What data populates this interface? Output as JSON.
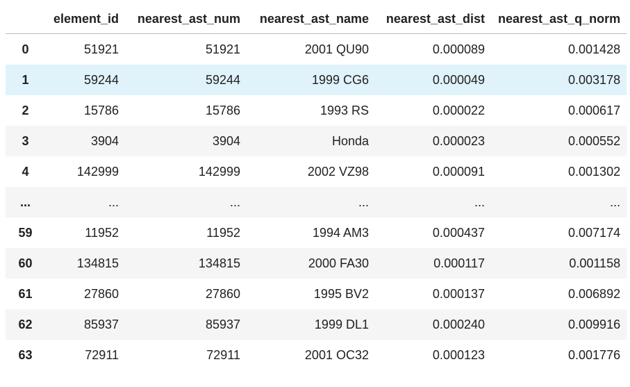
{
  "table": {
    "columns": [
      "",
      "element_id",
      "nearest_ast_num",
      "nearest_ast_name",
      "nearest_ast_dist",
      "nearest_ast_q_norm"
    ],
    "rows": [
      {
        "index": "0",
        "cells": [
          "51921",
          "51921",
          "2001 QU90",
          "0.000089",
          "0.001428"
        ]
      },
      {
        "index": "1",
        "cells": [
          "59244",
          "59244",
          "1999 CG6",
          "0.000049",
          "0.003178"
        ],
        "highlighted": true
      },
      {
        "index": "2",
        "cells": [
          "15786",
          "15786",
          "1993 RS",
          "0.000022",
          "0.000617"
        ]
      },
      {
        "index": "3",
        "cells": [
          "3904",
          "3904",
          "Honda",
          "0.000023",
          "0.000552"
        ]
      },
      {
        "index": "4",
        "cells": [
          "142999",
          "142999",
          "2002 VZ98",
          "0.000091",
          "0.001302"
        ]
      },
      {
        "index": "...",
        "cells": [
          "...",
          "...",
          "...",
          "...",
          "..."
        ]
      },
      {
        "index": "59",
        "cells": [
          "11952",
          "11952",
          "1994 AM3",
          "0.000437",
          "0.007174"
        ]
      },
      {
        "index": "60",
        "cells": [
          "134815",
          "134815",
          "2000 FA30",
          "0.000117",
          "0.001158"
        ]
      },
      {
        "index": "61",
        "cells": [
          "27860",
          "27860",
          "1995 BV2",
          "0.000137",
          "0.006892"
        ]
      },
      {
        "index": "62",
        "cells": [
          "85937",
          "85937",
          "1999 DL1",
          "0.000240",
          "0.009916"
        ]
      },
      {
        "index": "63",
        "cells": [
          "72911",
          "72911",
          "2001 OC32",
          "0.000123",
          "0.001776"
        ]
      }
    ]
  }
}
